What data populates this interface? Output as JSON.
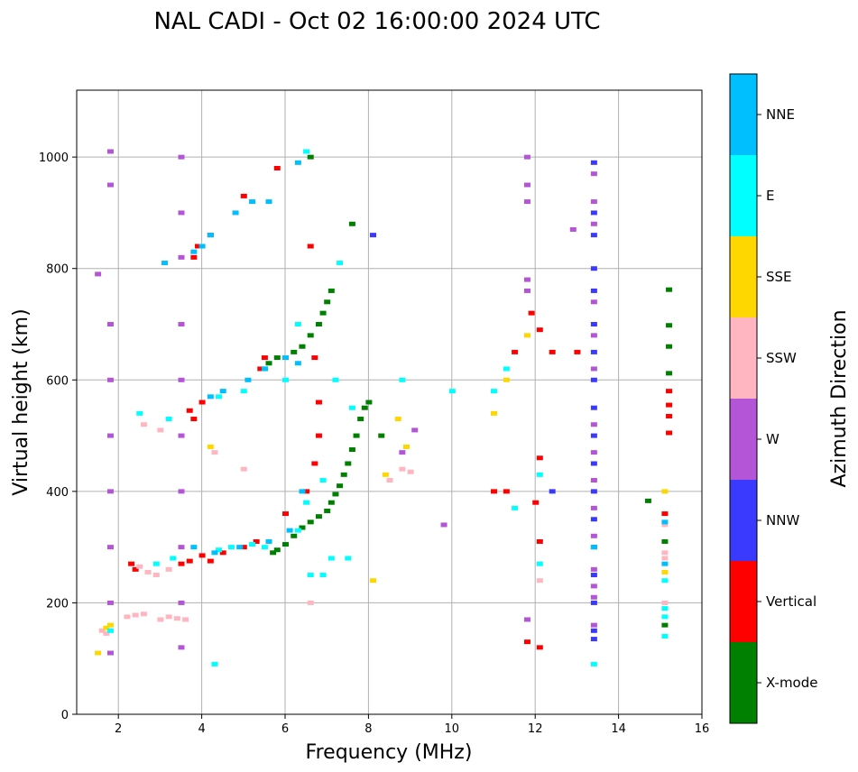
{
  "chart_data": {
    "type": "scatter",
    "title": "NAL CADI - Oct 02 16:00:00 2024 UTC",
    "xlabel": "Frequency (MHz)",
    "ylabel": "Virtual height (km)",
    "xlim": [
      1,
      16
    ],
    "ylim": [
      0,
      1120
    ],
    "xticks": [
      2,
      4,
      6,
      8,
      10,
      12,
      14,
      16
    ],
    "yticks": [
      0,
      200,
      400,
      600,
      800,
      1000
    ],
    "grid": true,
    "colorbar": {
      "title": "Azimuth Direction",
      "position": "right",
      "categories": [
        {
          "name": "X-mode",
          "color": "#008000"
        },
        {
          "name": "Vertical",
          "color": "#ff0000"
        },
        {
          "name": "NNW",
          "color": "#3a3aff"
        },
        {
          "name": "W",
          "color": "#b455d8"
        },
        {
          "name": "SSW",
          "color": "#ffb6c1"
        },
        {
          "name": "SSE",
          "color": "#ffd700"
        },
        {
          "name": "E",
          "color": "#00ffff"
        },
        {
          "name": "NNE",
          "color": "#00bfff"
        }
      ]
    },
    "series": [
      {
        "name": "X-mode",
        "points": [
          [
            5.7,
            290
          ],
          [
            5.8,
            295
          ],
          [
            6.0,
            305
          ],
          [
            6.2,
            320
          ],
          [
            6.4,
            335
          ],
          [
            6.6,
            345
          ],
          [
            6.8,
            355
          ],
          [
            7.0,
            365
          ],
          [
            7.1,
            380
          ],
          [
            7.2,
            395
          ],
          [
            7.3,
            410
          ],
          [
            7.4,
            430
          ],
          [
            7.5,
            450
          ],
          [
            7.6,
            475
          ],
          [
            7.7,
            500
          ],
          [
            7.8,
            530
          ],
          [
            7.9,
            550
          ],
          [
            8.0,
            560
          ],
          [
            8.3,
            500
          ],
          [
            5.5,
            620
          ],
          [
            5.6,
            630
          ],
          [
            5.8,
            640
          ],
          [
            6.2,
            650
          ],
          [
            6.4,
            660
          ],
          [
            6.6,
            680
          ],
          [
            6.8,
            700
          ],
          [
            6.9,
            720
          ],
          [
            7.0,
            740
          ],
          [
            7.1,
            760
          ],
          [
            7.6,
            880
          ],
          [
            6.6,
            1000
          ],
          [
            15.2,
            762
          ],
          [
            15.2,
            698
          ],
          [
            15.2,
            660
          ],
          [
            15.2,
            612
          ],
          [
            14.7,
            383
          ],
          [
            15.1,
            310
          ],
          [
            15.1,
            160
          ]
        ]
      },
      {
        "name": "Vertical",
        "points": [
          [
            2.3,
            270
          ],
          [
            2.4,
            260
          ],
          [
            3.5,
            270
          ],
          [
            3.7,
            275
          ],
          [
            4.0,
            285
          ],
          [
            4.2,
            275
          ],
          [
            4.5,
            290
          ],
          [
            5.0,
            300
          ],
          [
            5.3,
            310
          ],
          [
            6.0,
            360
          ],
          [
            6.5,
            400
          ],
          [
            6.7,
            450
          ],
          [
            6.8,
            500
          ],
          [
            6.8,
            560
          ],
          [
            6.7,
            640
          ],
          [
            6.6,
            840
          ],
          [
            3.8,
            530
          ],
          [
            3.7,
            545
          ],
          [
            4.0,
            560
          ],
          [
            5.4,
            620
          ],
          [
            5.5,
            640
          ],
          [
            3.8,
            820
          ],
          [
            3.9,
            840
          ],
          [
            4.2,
            860
          ],
          [
            5.0,
            930
          ],
          [
            5.8,
            980
          ],
          [
            11.0,
            400
          ],
          [
            11.3,
            400
          ],
          [
            12.0,
            380
          ],
          [
            12.1,
            460
          ],
          [
            12.1,
            310
          ],
          [
            12.1,
            120
          ],
          [
            11.8,
            130
          ],
          [
            12.4,
            650
          ],
          [
            13.0,
            650
          ],
          [
            12.1,
            690
          ],
          [
            11.9,
            720
          ],
          [
            11.5,
            650
          ],
          [
            15.2,
            580
          ],
          [
            15.2,
            555
          ],
          [
            15.2,
            535
          ],
          [
            15.2,
            505
          ],
          [
            15.1,
            360
          ]
        ]
      },
      {
        "name": "NNW",
        "points": [
          [
            13.4,
            990
          ],
          [
            13.4,
            900
          ],
          [
            13.4,
            860
          ],
          [
            13.4,
            800
          ],
          [
            13.4,
            760
          ],
          [
            13.4,
            700
          ],
          [
            13.4,
            650
          ],
          [
            13.4,
            600
          ],
          [
            13.4,
            550
          ],
          [
            13.4,
            500
          ],
          [
            13.4,
            450
          ],
          [
            13.4,
            400
          ],
          [
            13.4,
            350
          ],
          [
            13.4,
            300
          ],
          [
            13.4,
            250
          ],
          [
            13.4,
            200
          ],
          [
            13.4,
            150
          ],
          [
            13.4,
            135
          ],
          [
            8.1,
            860
          ],
          [
            12.4,
            400
          ]
        ]
      },
      {
        "name": "W",
        "points": [
          [
            1.8,
            1010
          ],
          [
            1.8,
            950
          ],
          [
            1.8,
            700
          ],
          [
            1.8,
            600
          ],
          [
            1.8,
            500
          ],
          [
            1.8,
            400
          ],
          [
            1.8,
            300
          ],
          [
            1.8,
            200
          ],
          [
            1.8,
            110
          ],
          [
            3.5,
            1000
          ],
          [
            3.5,
            900
          ],
          [
            3.5,
            820
          ],
          [
            3.5,
            700
          ],
          [
            3.5,
            600
          ],
          [
            3.5,
            500
          ],
          [
            3.5,
            400
          ],
          [
            3.5,
            300
          ],
          [
            3.5,
            200
          ],
          [
            3.5,
            120
          ],
          [
            11.8,
            1000
          ],
          [
            11.8,
            950
          ],
          [
            11.8,
            920
          ],
          [
            11.8,
            780
          ],
          [
            11.8,
            760
          ],
          [
            11.8,
            170
          ],
          [
            13.4,
            970
          ],
          [
            13.4,
            920
          ],
          [
            13.4,
            880
          ],
          [
            13.4,
            740
          ],
          [
            13.4,
            680
          ],
          [
            13.4,
            620
          ],
          [
            13.4,
            520
          ],
          [
            13.4,
            470
          ],
          [
            13.4,
            420
          ],
          [
            13.4,
            370
          ],
          [
            13.4,
            320
          ],
          [
            13.4,
            260
          ],
          [
            13.4,
            230
          ],
          [
            13.4,
            210
          ],
          [
            13.4,
            160
          ],
          [
            12.9,
            870
          ],
          [
            8.8,
            470
          ],
          [
            9.1,
            510
          ],
          [
            1.5,
            790
          ],
          [
            9.8,
            340
          ]
        ]
      },
      {
        "name": "SSW",
        "points": [
          [
            1.6,
            150
          ],
          [
            1.7,
            145
          ],
          [
            2.2,
            175
          ],
          [
            2.4,
            178
          ],
          [
            2.6,
            180
          ],
          [
            3.0,
            170
          ],
          [
            3.2,
            175
          ],
          [
            3.4,
            172
          ],
          [
            3.6,
            170
          ],
          [
            2.5,
            265
          ],
          [
            2.7,
            255
          ],
          [
            2.9,
            250
          ],
          [
            3.2,
            260
          ],
          [
            3.0,
            510
          ],
          [
            2.6,
            520
          ],
          [
            4.3,
            470
          ],
          [
            5.0,
            440
          ],
          [
            8.5,
            420
          ],
          [
            8.8,
            440
          ],
          [
            9.0,
            435
          ],
          [
            6.6,
            200
          ],
          [
            15.1,
            290
          ],
          [
            15.1,
            280
          ],
          [
            15.1,
            200
          ],
          [
            15.1,
            340
          ],
          [
            12.1,
            240
          ]
        ]
      },
      {
        "name": "SSE",
        "points": [
          [
            1.7,
            155
          ],
          [
            1.8,
            160
          ],
          [
            1.5,
            110
          ],
          [
            4.2,
            480
          ],
          [
            8.4,
            430
          ],
          [
            8.7,
            530
          ],
          [
            8.9,
            480
          ],
          [
            8.1,
            240
          ],
          [
            15.1,
            400
          ],
          [
            15.1,
            255
          ],
          [
            11.8,
            680
          ],
          [
            11.3,
            600
          ],
          [
            11.0,
            540
          ]
        ]
      },
      {
        "name": "E",
        "points": [
          [
            1.8,
            150
          ],
          [
            2.9,
            270
          ],
          [
            3.3,
            280
          ],
          [
            4.4,
            295
          ],
          [
            4.7,
            300
          ],
          [
            5.2,
            305
          ],
          [
            5.5,
            300
          ],
          [
            6.3,
            330
          ],
          [
            6.5,
            380
          ],
          [
            6.6,
            250
          ],
          [
            6.9,
            250
          ],
          [
            7.1,
            280
          ],
          [
            7.5,
            280
          ],
          [
            6.9,
            420
          ],
          [
            7.2,
            600
          ],
          [
            7.6,
            550
          ],
          [
            3.2,
            530
          ],
          [
            2.5,
            540
          ],
          [
            4.4,
            570
          ],
          [
            5.0,
            580
          ],
          [
            6.0,
            600
          ],
          [
            6.3,
            700
          ],
          [
            7.3,
            810
          ],
          [
            4.3,
            90
          ],
          [
            8.8,
            600
          ],
          [
            10.0,
            580
          ],
          [
            11.0,
            580
          ],
          [
            11.3,
            620
          ],
          [
            11.5,
            370
          ],
          [
            12.1,
            430
          ],
          [
            12.1,
            270
          ],
          [
            15.1,
            240
          ],
          [
            15.1,
            190
          ],
          [
            15.1,
            175
          ],
          [
            15.1,
            140
          ],
          [
            13.4,
            90
          ],
          [
            6.5,
            1010
          ]
        ]
      },
      {
        "name": "NNE",
        "points": [
          [
            3.8,
            830
          ],
          [
            4.0,
            840
          ],
          [
            4.2,
            860
          ],
          [
            4.8,
            900
          ],
          [
            5.2,
            920
          ],
          [
            5.6,
            920
          ],
          [
            6.3,
            990
          ],
          [
            3.1,
            810
          ],
          [
            4.2,
            570
          ],
          [
            4.5,
            580
          ],
          [
            5.1,
            600
          ],
          [
            5.5,
            620
          ],
          [
            6.0,
            640
          ],
          [
            6.3,
            630
          ],
          [
            3.8,
            300
          ],
          [
            4.3,
            290
          ],
          [
            4.9,
            300
          ],
          [
            5.6,
            310
          ],
          [
            6.1,
            330
          ],
          [
            6.4,
            400
          ],
          [
            13.4,
            300
          ],
          [
            15.1,
            345
          ],
          [
            15.1,
            270
          ]
        ]
      }
    ]
  }
}
